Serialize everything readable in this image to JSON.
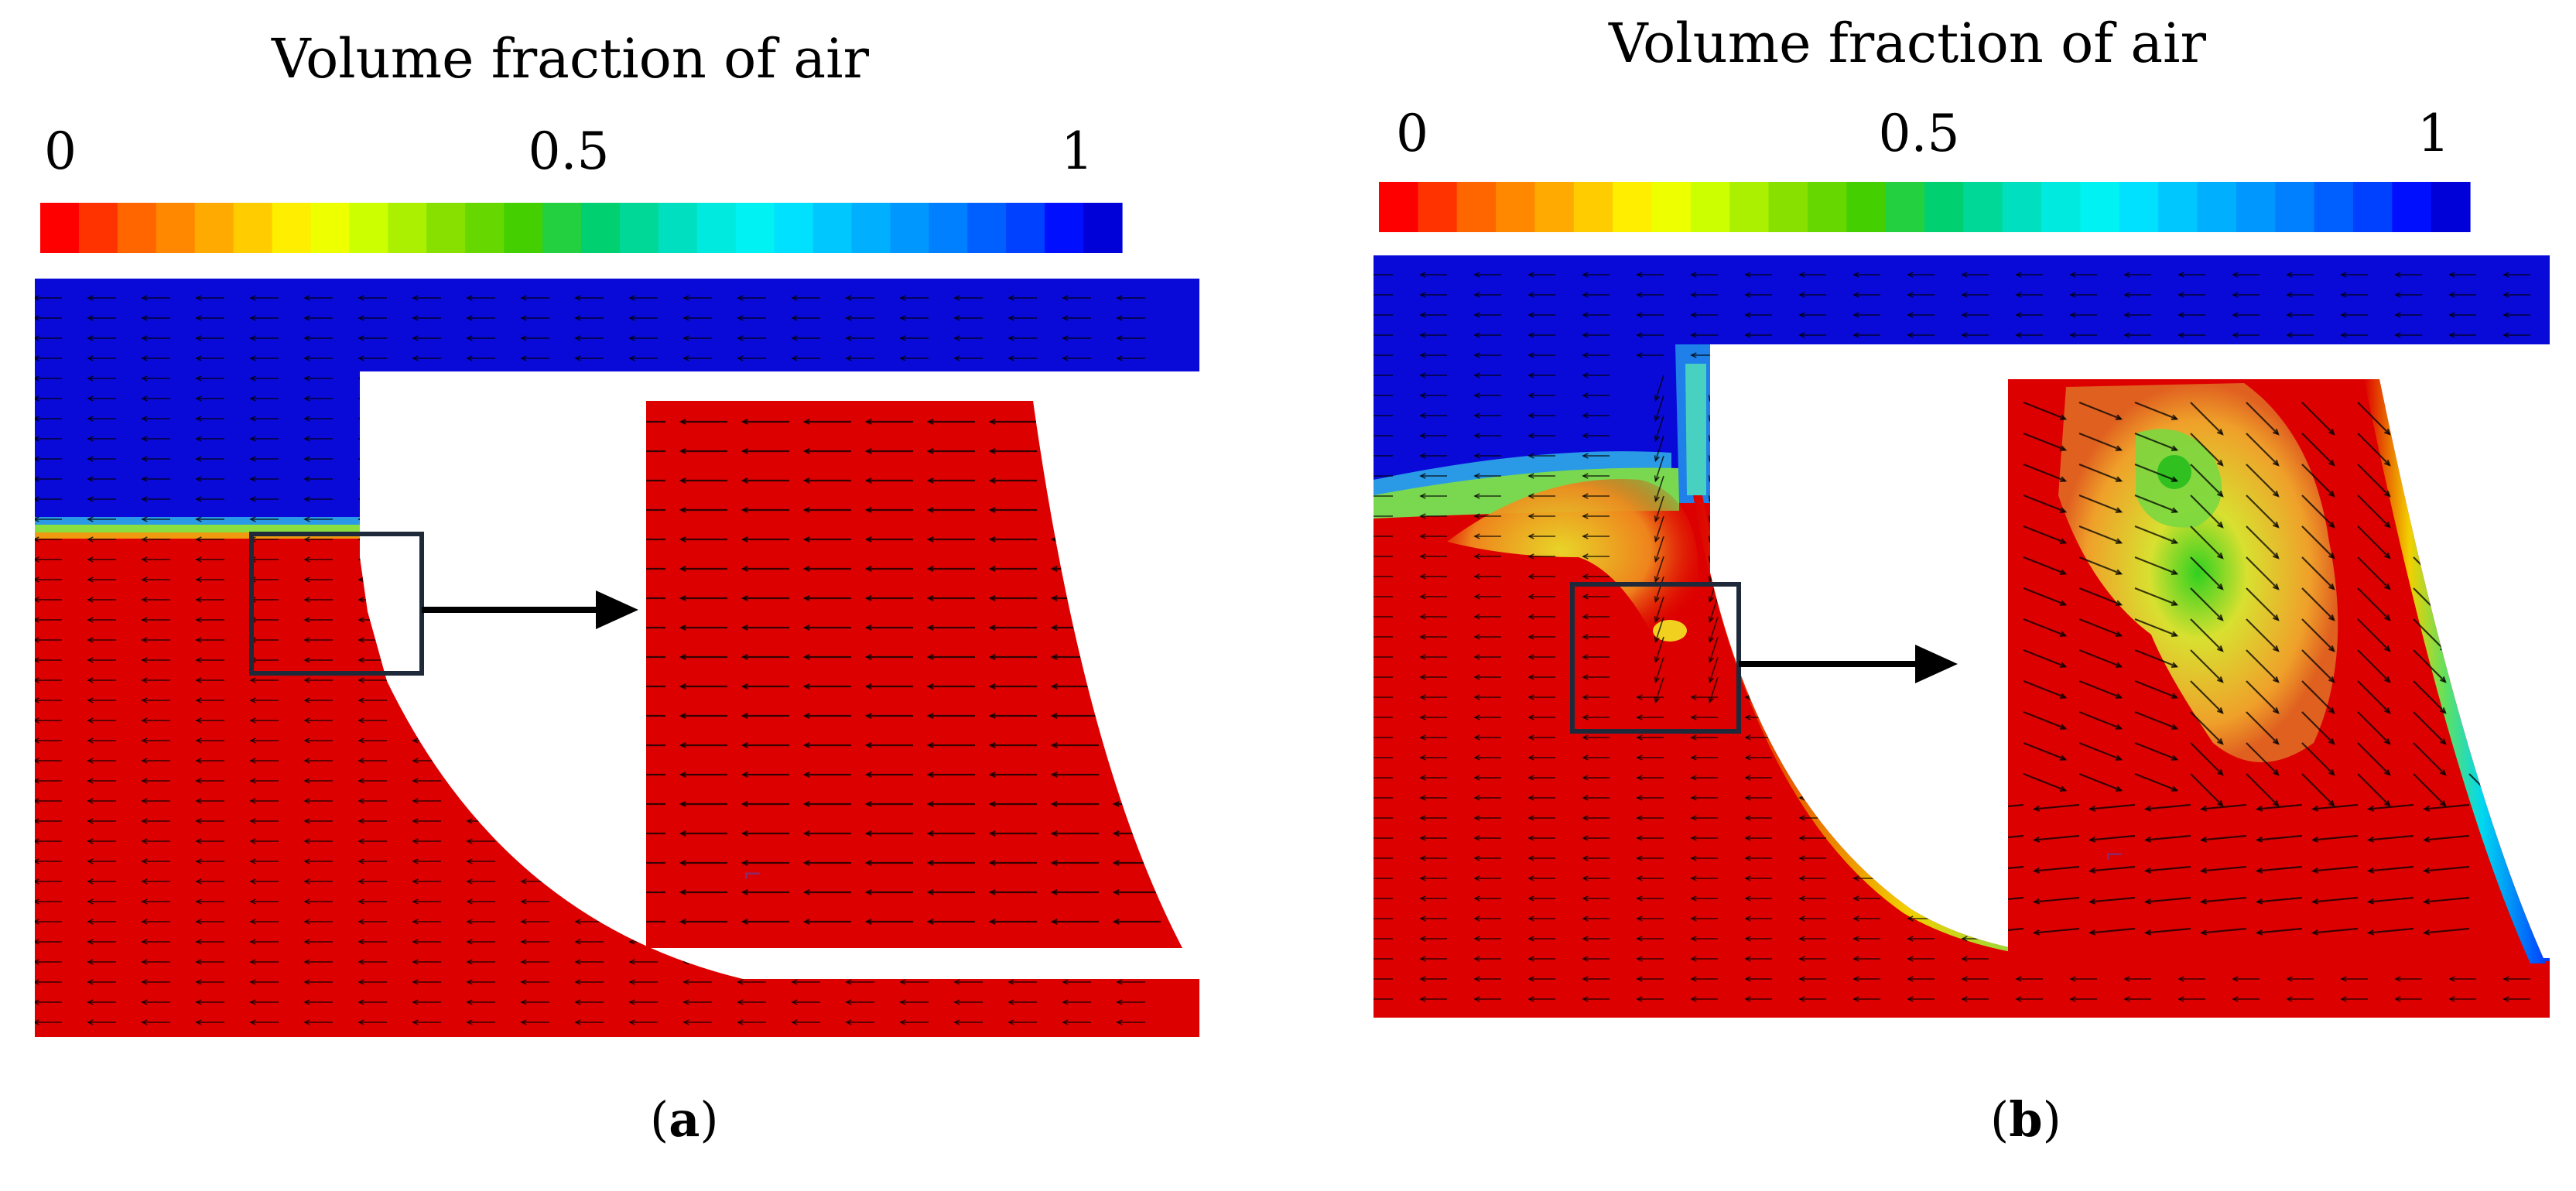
{
  "colors": {
    "water": "#dd0000",
    "air": "#0a0ad8",
    "frame": "#1e2a3a",
    "arrow": "#000000",
    "colorbar": [
      "#ff0000",
      "#ff3300",
      "#ff6600",
      "#ff8800",
      "#ffaa00",
      "#ffcc00",
      "#ffee00",
      "#eeff00",
      "#ccff00",
      "#aaf000",
      "#88e000",
      "#66d800",
      "#44d000",
      "#22d040",
      "#00d070",
      "#00d898",
      "#00e0c0",
      "#00eae0",
      "#00f2f2",
      "#00e0ff",
      "#00c8ff",
      "#00b0ff",
      "#0098ff",
      "#0080ff",
      "#0060ff",
      "#0040ff",
      "#0010ff",
      "#0000d8"
    ]
  },
  "panels": [
    {
      "colorbar": {
        "title": "Volume fraction of air",
        "tick_min": "0",
        "tick_mid": "0.5",
        "tick_max": "1"
      },
      "caption": {
        "open": "(",
        "letter": "a",
        "close": ")"
      }
    },
    {
      "colorbar": {
        "title": "Volume fraction of air",
        "tick_min": "0",
        "tick_mid": "0.5",
        "tick_max": "1"
      },
      "caption": {
        "open": "(",
        "letter": "b",
        "close": ")"
      }
    }
  ]
}
